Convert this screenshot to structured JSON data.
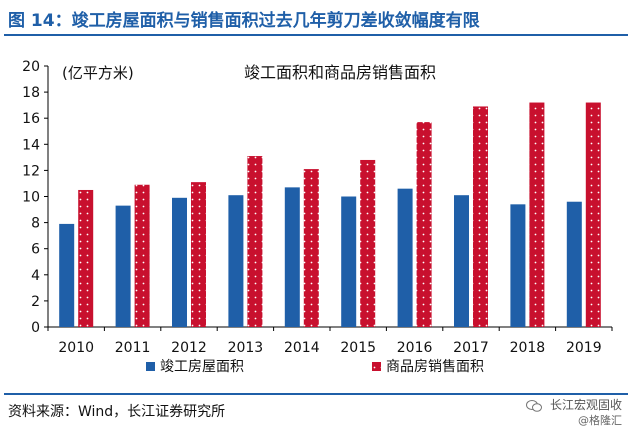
{
  "figure_title": "图 14：竣工房屋面积与销售面积过去几年剪刀差收敛幅度有限",
  "source_text": "资料来源：Wind，长江证券研究所",
  "watermark": {
    "line1": "长江宏观固收",
    "line2": "@格隆汇"
  },
  "colors": {
    "series1": "#1f5fa8",
    "series2": "#c8102e",
    "rule": "#1f5fa8",
    "dot": "#ffffff"
  },
  "chart_data": {
    "type": "bar",
    "title": "竣工面积和商品房销售面积",
    "ylabel": "(亿平方米)",
    "xlabel": "",
    "ylim": [
      0,
      20
    ],
    "yticks": [
      0,
      2,
      4,
      6,
      8,
      10,
      12,
      14,
      16,
      18,
      20
    ],
    "grid": false,
    "legend_position": "bottom",
    "categories": [
      "2010",
      "2011",
      "2012",
      "2013",
      "2014",
      "2015",
      "2016",
      "2017",
      "2018",
      "2019"
    ],
    "series": [
      {
        "name": "竣工房屋面积",
        "values": [
          7.9,
          9.3,
          9.9,
          10.1,
          10.7,
          10.0,
          10.6,
          10.1,
          9.4,
          9.6
        ]
      },
      {
        "name": "商品房销售面积",
        "values": [
          10.5,
          10.9,
          11.1,
          13.1,
          12.1,
          12.8,
          15.7,
          16.9,
          17.2,
          17.2
        ]
      }
    ]
  }
}
